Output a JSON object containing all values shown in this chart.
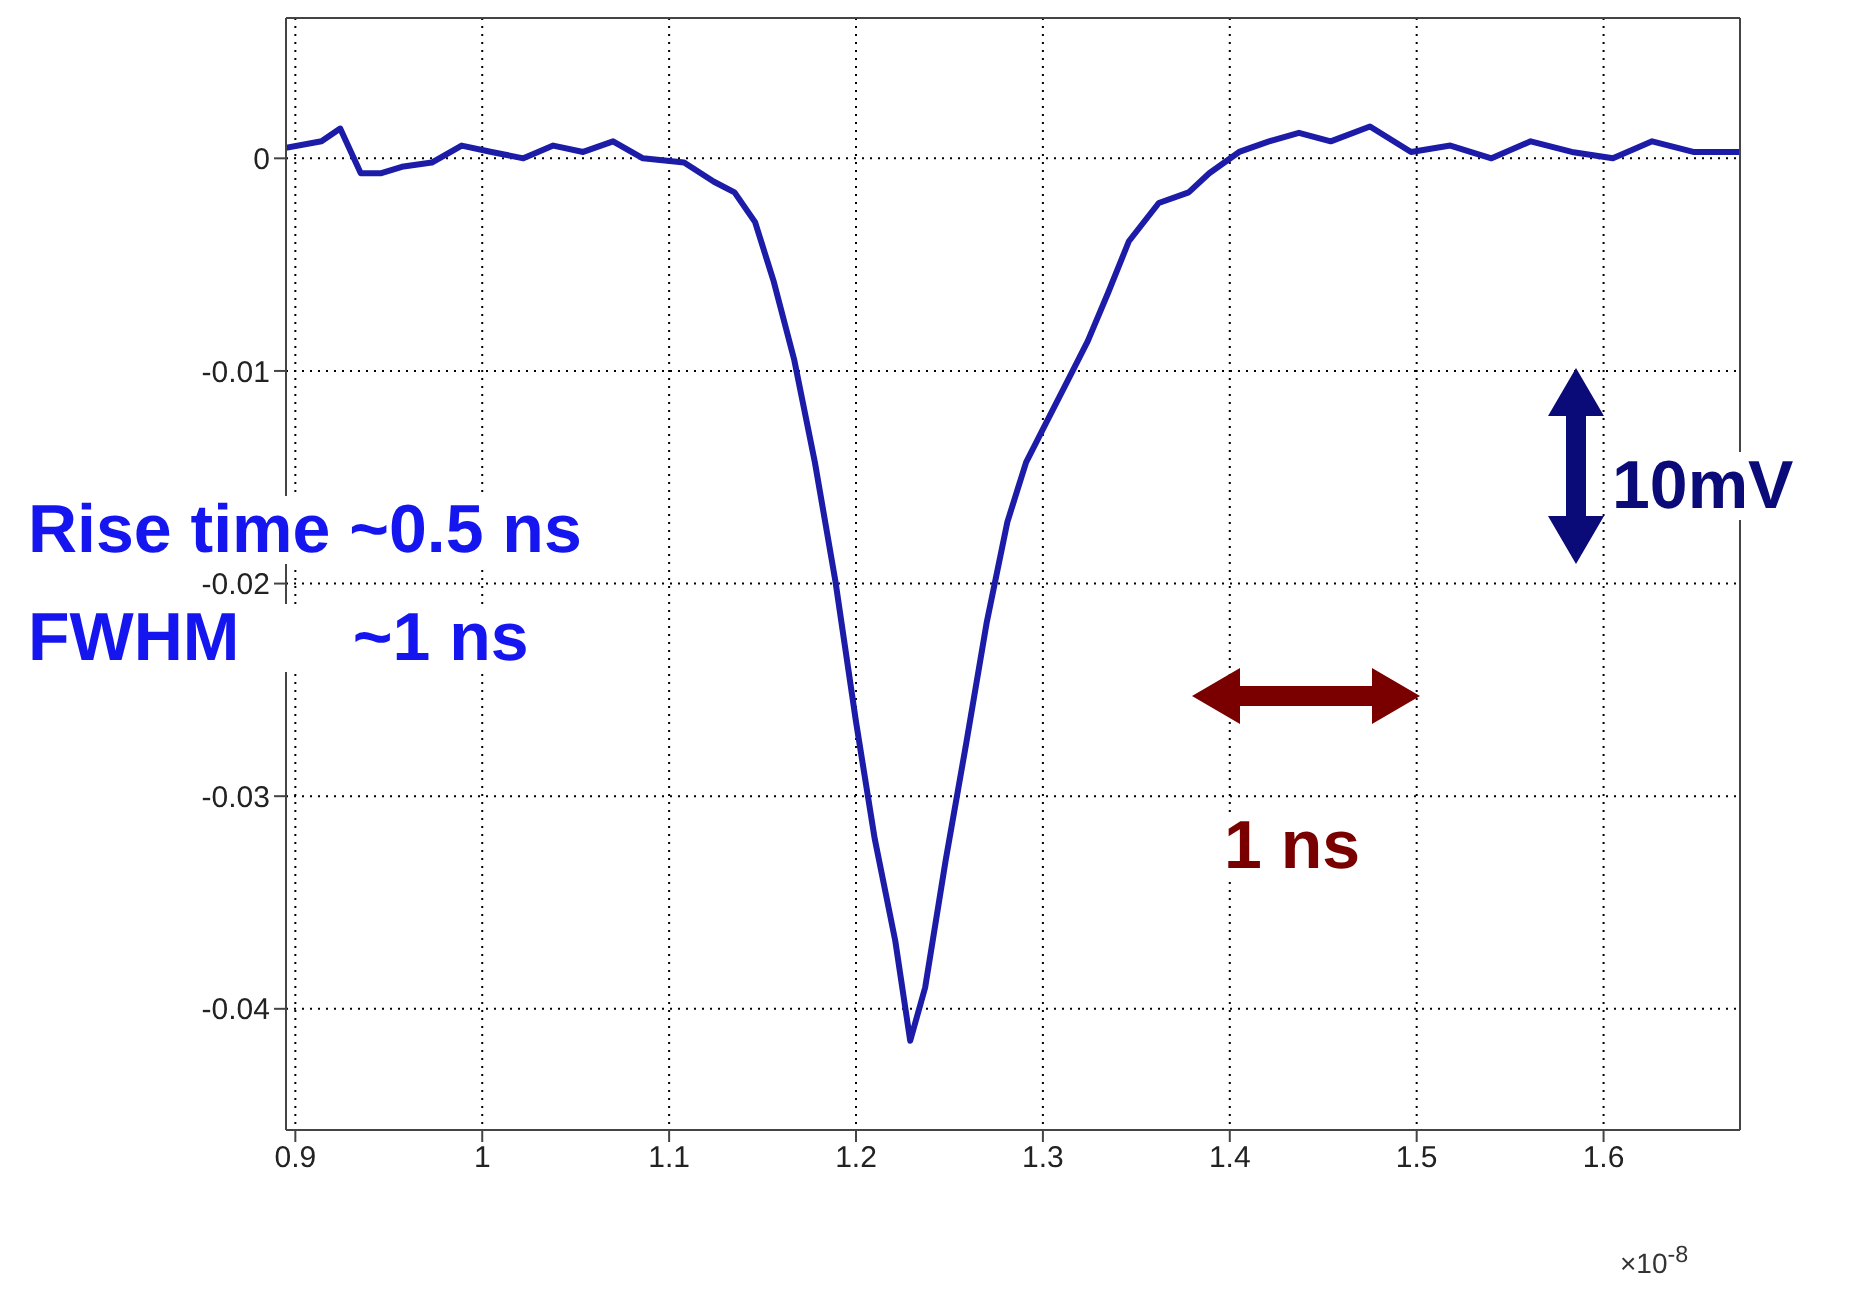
{
  "chart_data": {
    "type": "line",
    "xlim": [
      0.895,
      1.673
    ],
    "ylim": [
      -0.0457,
      0.0066
    ],
    "xticks": [
      0.9,
      1,
      1.1,
      1.2,
      1.3,
      1.4,
      1.5,
      1.6
    ],
    "yticks": [
      0,
      -0.01,
      -0.02,
      -0.03,
      -0.04
    ],
    "grid": true,
    "marker": "none",
    "line_style": "solid",
    "annotations": [
      "Rise time ~0.5 ns",
      "FWHM      ~1 ns",
      "10mV",
      "1 ns",
      "×10$^{-8}$"
    ],
    "series": [
      {
        "color": "#1c1ca8",
        "x": [
          0.895,
          0.914,
          0.924,
          0.935,
          0.946,
          0.957,
          0.973,
          0.989,
          1.005,
          1.022,
          1.038,
          1.054,
          1.07,
          1.086,
          1.108,
          1.124,
          1.135,
          1.146,
          1.156,
          1.167,
          1.178,
          1.189,
          1.2,
          1.21,
          1.221,
          1.229,
          1.237,
          1.248,
          1.259,
          1.27,
          1.281,
          1.291,
          1.302,
          1.313,
          1.324,
          1.335,
          1.346,
          1.362,
          1.378,
          1.389,
          1.405,
          1.421,
          1.437,
          1.454,
          1.475,
          1.497,
          1.518,
          1.54,
          1.561,
          1.583,
          1.605,
          1.626,
          1.648,
          1.673
        ],
        "values": [
          0.0005,
          0.0008,
          0.0014,
          -0.0007,
          -0.0007,
          -0.0004,
          -0.0002,
          0.0006,
          0.0003,
          0,
          0.0006,
          0.0003,
          0.0008,
          0,
          -0.0002,
          -0.0011,
          -0.0016,
          -0.003,
          -0.0058,
          -0.0095,
          -0.0143,
          -0.0199,
          -0.0265,
          -0.032,
          -0.0368,
          -0.0415,
          -0.039,
          -0.033,
          -0.0275,
          -0.0218,
          -0.0171,
          -0.0143,
          -0.0124,
          -0.0105,
          -0.0086,
          -0.0063,
          -0.0039,
          -0.0021,
          -0.0016,
          -0.0007,
          0.0003,
          0.0008,
          0.0012,
          0.0008,
          0.0015,
          0.0003,
          0.0006,
          0,
          0.0008,
          0.0003,
          0,
          0.0008,
          0.0003,
          0.0003
        ]
      }
    ]
  }
}
